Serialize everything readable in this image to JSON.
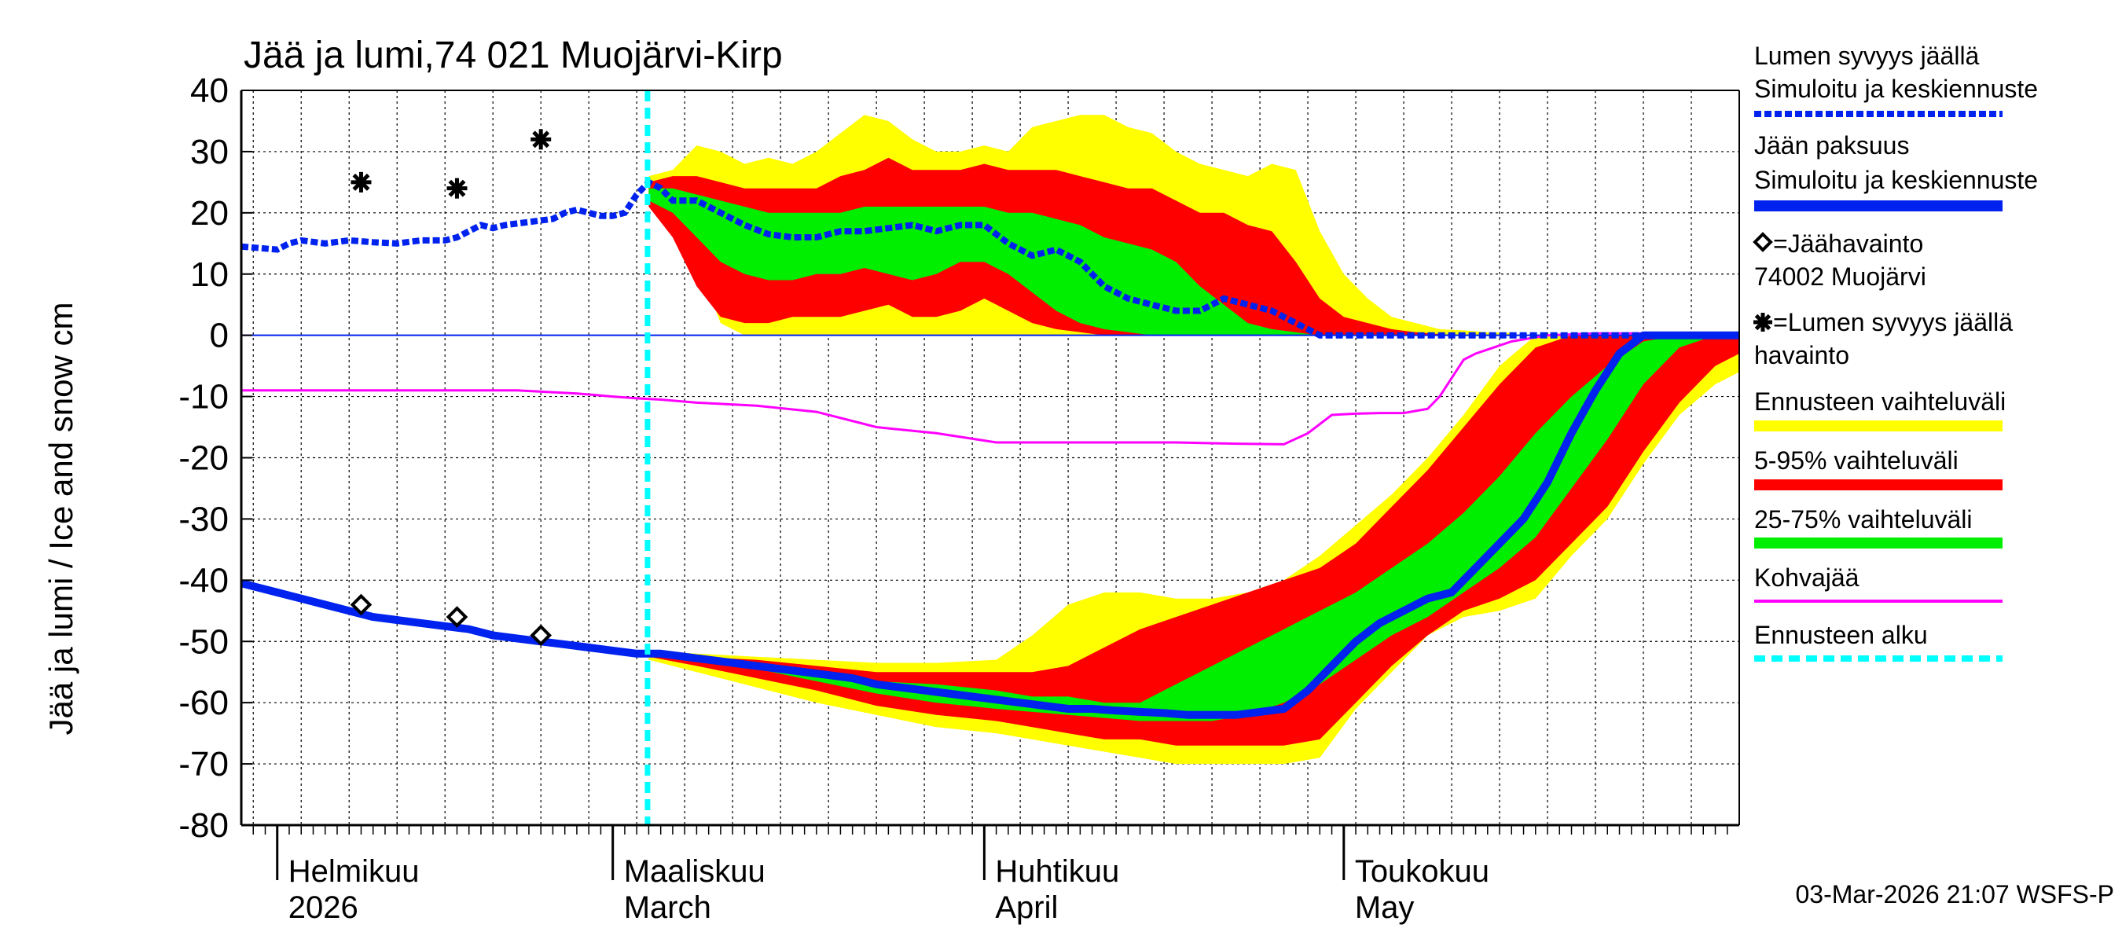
{
  "colors": {
    "yellow": "#ffff00",
    "red": "#ff0000",
    "green": "#00ee00",
    "ice": "#0022ee",
    "snow": "#0022ee",
    "slush": "#ff00ff",
    "forecast_start": "#00ffff",
    "grid": "#000000",
    "background": "#ffffff"
  },
  "chart_data": {
    "type": "area",
    "title": "Jää ja lumi,74 021 Muojärvi-Kirp",
    "ylabel": "Jää ja lumi / Ice and snow    cm",
    "ylim": [
      -80,
      40
    ],
    "yticks": [
      40,
      30,
      20,
      10,
      0,
      -10,
      -20,
      -30,
      -40,
      -50,
      -60,
      -70,
      -80
    ],
    "xlim": [
      -3,
      122
    ],
    "x_unit": "days since 2026-02-01",
    "months": [
      {
        "x": 0,
        "label1": "Helmikuu",
        "label2": "2026"
      },
      {
        "x": 28,
        "label1": "Maaliskuu",
        "label2": "March"
      },
      {
        "x": 59,
        "label1": "Huhtikuu",
        "label2": "April"
      },
      {
        "x": 89,
        "label1": "Toukokuu",
        "label2": "May"
      }
    ],
    "forecast_start_x": 30.9,
    "timestamp": "03-Mar-2026 21:07 WSFS-P",
    "legend": [
      {
        "key": "snow_sim",
        "line1": "Lumen syvyys jäällä",
        "line2": "Simuloitu ja keskiennuste"
      },
      {
        "key": "ice_sim",
        "line1": "Jään paksuus",
        "line2": "Simuloitu ja keskiennuste"
      },
      {
        "key": "ice_obs",
        "line1": "=Jäähavainto",
        "line2": "74002 Muojärvi"
      },
      {
        "key": "snow_obs",
        "line1": "=Lumen syvyys jäällä",
        "line2": "havainto"
      },
      {
        "key": "range_full",
        "line1": "Ennusteen vaihteluväli"
      },
      {
        "key": "range_5_95",
        "line1": "5-95% vaihteluväli"
      },
      {
        "key": "range_25_75",
        "line1": "25-75% vaihteluväli"
      },
      {
        "key": "slush",
        "line1": "Kohvajää"
      },
      {
        "key": "forecast_start",
        "line1": "Ennusteen alku"
      }
    ],
    "snow_bands": {
      "x": [
        31,
        33,
        35,
        37,
        39,
        41,
        43,
        45,
        47,
        49,
        51,
        53,
        55,
        57,
        59,
        61,
        63,
        65,
        67,
        69,
        71,
        73,
        75,
        77,
        79,
        81,
        83,
        85,
        87,
        89,
        91,
        93,
        95,
        97,
        99,
        101,
        103
      ],
      "full_upper": [
        26,
        27,
        31,
        30,
        28,
        29,
        28,
        30,
        33,
        36,
        35,
        32,
        30,
        30,
        31,
        30,
        34,
        35,
        36,
        36,
        34,
        33,
        30,
        28,
        27,
        26,
        28,
        27,
        17,
        10,
        6,
        3,
        2,
        1,
        0.8,
        0.5,
        0.4
      ],
      "full_lower": [
        23,
        20,
        12,
        2,
        0,
        0,
        0,
        0,
        0,
        0,
        0,
        0,
        0,
        0,
        0,
        0,
        0,
        0,
        0,
        0,
        0,
        0,
        0,
        0,
        0,
        0,
        0,
        0,
        0,
        0,
        0,
        0,
        0,
        0,
        0,
        0,
        0
      ],
      "p95": [
        25,
        26,
        26,
        25,
        24,
        24,
        24,
        24,
        26,
        27,
        29,
        27,
        27,
        27,
        28,
        27,
        27,
        27,
        26,
        25,
        24,
        24,
        22,
        20,
        20,
        18,
        17,
        12,
        6,
        3,
        2,
        1,
        0.5,
        0.2,
        0,
        0,
        0
      ],
      "p75": [
        24,
        24,
        23,
        22,
        21,
        20,
        20,
        20,
        20,
        21,
        21,
        21,
        21,
        21,
        21,
        20,
        20,
        19,
        18,
        16,
        15,
        14,
        12,
        8,
        5,
        2,
        1,
        0.5,
        0,
        0,
        0,
        0,
        0,
        0,
        0,
        0,
        0
      ],
      "p25": [
        22,
        20,
        16,
        12,
        10,
        9,
        9,
        10,
        10,
        11,
        10,
        9,
        10,
        12,
        12,
        10,
        7,
        4,
        2,
        1,
        0.5,
        0,
        0,
        0,
        0,
        0,
        0,
        0,
        0,
        0,
        0,
        0,
        0,
        0,
        0,
        0,
        0
      ],
      "p5": [
        21,
        16,
        8,
        3,
        2,
        2,
        3,
        3,
        3,
        4,
        5,
        3,
        3,
        4,
        6,
        4,
        2,
        1,
        0.5,
        0,
        0,
        0,
        0,
        0,
        0,
        0,
        0,
        0,
        0,
        0,
        0,
        0,
        0,
        0,
        0,
        0,
        0
      ]
    },
    "snow_sim": {
      "x": [
        -3,
        0,
        1,
        2,
        4,
        6,
        8,
        10,
        12,
        14,
        15,
        16,
        17,
        18,
        19,
        21,
        23,
        24,
        25,
        27,
        28,
        29,
        30,
        31,
        32,
        33,
        35,
        36,
        37,
        39,
        41,
        43,
        45,
        47,
        49,
        51,
        53,
        55,
        57,
        59,
        61,
        63,
        65,
        67,
        69,
        71,
        73,
        75,
        77,
        79,
        81,
        83,
        85,
        87,
        90,
        95,
        100,
        105,
        110,
        115,
        122
      ],
      "y": [
        14.5,
        14,
        15,
        15.5,
        15,
        15.5,
        15.2,
        15,
        15.5,
        15.5,
        16,
        17,
        18,
        17.5,
        18,
        18.5,
        19,
        20,
        20.5,
        19.5,
        19.5,
        20,
        23,
        25,
        24,
        22,
        22,
        21,
        20,
        18,
        16.5,
        16,
        16,
        17,
        17,
        17.5,
        18,
        17,
        18,
        18,
        15,
        13,
        14,
        12,
        8,
        6,
        5,
        4,
        4,
        6,
        5,
        4,
        2,
        0,
        0,
        0,
        0,
        0,
        0,
        0,
        0
      ]
    },
    "ice_bands": {
      "x": [
        31,
        35,
        40,
        45,
        50,
        55,
        60,
        63,
        66,
        69,
        72,
        75,
        78,
        81,
        84,
        87,
        90,
        93,
        96,
        99,
        102,
        105,
        108,
        111,
        114,
        117,
        120,
        122
      ],
      "full_upper": [
        -51.5,
        -52,
        -52.5,
        -53,
        -53.5,
        -53.5,
        -53,
        -49,
        -44,
        -42,
        -42,
        -43,
        -43,
        -42,
        -40,
        -36,
        -31,
        -26,
        -20,
        -13,
        -5,
        0,
        0,
        0,
        0,
        0,
        0,
        0
      ],
      "p95": [
        -52,
        -52.5,
        -53,
        -54,
        -55,
        -55,
        -55,
        -55,
        -54,
        -51,
        -48,
        -46,
        -44,
        -42,
        -40,
        -38,
        -34,
        -28,
        -22,
        -15,
        -8,
        -2,
        0,
        0,
        0,
        0,
        0,
        0
      ],
      "p75": [
        -52,
        -52.5,
        -53.5,
        -55,
        -56.5,
        -57,
        -58,
        -59,
        -59,
        -60,
        -60,
        -57,
        -54,
        -51,
        -48,
        -45,
        -42,
        -38,
        -34,
        -29,
        -23,
        -16,
        -10,
        -5,
        -1,
        0,
        0,
        0
      ],
      "p25": [
        -52,
        -53,
        -54.5,
        -56.5,
        -58.5,
        -60,
        -61,
        -61.5,
        -62,
        -62.5,
        -63,
        -63,
        -63,
        -62,
        -60,
        -57,
        -53,
        -49,
        -46,
        -42,
        -38,
        -33,
        -25,
        -17,
        -8,
        -2,
        0,
        0
      ],
      "p5": [
        -52.5,
        -54,
        -56,
        -58,
        -60.5,
        -62,
        -63,
        -64,
        -65,
        -66,
        -66,
        -67,
        -67,
        -67,
        -67,
        -66,
        -60,
        -54,
        -49,
        -45,
        -43,
        -40,
        -34,
        -28,
        -19,
        -11,
        -5,
        -3
      ],
      "full_lower": [
        -53,
        -55,
        -57.5,
        -60,
        -62,
        -64,
        -65,
        -66,
        -67,
        -68,
        -69,
        -70,
        -70,
        -70,
        -70,
        -69,
        -61,
        -55,
        -49,
        -46,
        -45,
        -43,
        -36,
        -30,
        -21,
        -13,
        -8,
        -6
      ]
    },
    "ice_sim": {
      "x": [
        -3,
        0,
        2,
        4,
        6,
        8,
        10,
        12,
        14,
        16,
        18,
        20,
        22,
        24,
        26,
        28,
        30,
        32,
        34,
        36,
        38,
        40,
        42,
        44,
        46,
        48,
        50,
        52,
        54,
        56,
        58,
        60,
        62,
        64,
        66,
        68,
        70,
        72,
        74,
        76,
        78,
        80,
        82,
        84,
        86,
        88,
        90,
        92,
        94,
        96,
        98,
        100,
        102,
        104,
        106,
        108,
        110,
        112,
        114,
        122
      ],
      "y": [
        -40.5,
        -42,
        -43,
        -44,
        -45,
        -46,
        -46.5,
        -47,
        -47.5,
        -48,
        -49,
        -49.5,
        -50,
        -50.5,
        -51,
        -51.5,
        -52,
        -52,
        -52.5,
        -53,
        -53.5,
        -54,
        -54.5,
        -55,
        -55.5,
        -56,
        -57,
        -57.5,
        -58,
        -58.5,
        -59,
        -59.5,
        -60,
        -60.5,
        -61,
        -61,
        -61.3,
        -61.5,
        -61.7,
        -62,
        -62,
        -62,
        -61.5,
        -61,
        -58,
        -54,
        -50,
        -47,
        -45,
        -43,
        -42,
        -38,
        -34,
        -30,
        -24,
        -16,
        -9,
        -3,
        0,
        0
      ]
    },
    "slush": {
      "x": [
        -3,
        0,
        5,
        10,
        15,
        20,
        25,
        28,
        30,
        32,
        35,
        40,
        45,
        50,
        55,
        60,
        65,
        70,
        75,
        80,
        84,
        86,
        88,
        90,
        92,
        94,
        96,
        97,
        98,
        99,
        100,
        103,
        106,
        110,
        122
      ],
      "y": [
        -9,
        -9,
        -9,
        -9,
        -9,
        -9,
        -9.5,
        -10,
        -10.3,
        -10.5,
        -11,
        -11.5,
        -12.5,
        -15,
        -16,
        -17.5,
        -17.5,
        -17.5,
        -17.5,
        -17.7,
        -17.8,
        -16,
        -13,
        -12.8,
        -12.7,
        -12.7,
        -12,
        -10,
        -7,
        -4,
        -3,
        -1,
        0,
        0.3,
        0.3
      ]
    },
    "ice_obs": [
      {
        "x": 7,
        "y": -44
      },
      {
        "x": 15,
        "y": -46
      },
      {
        "x": 22,
        "y": -49
      }
    ],
    "snow_obs": [
      {
        "x": 7,
        "y": 25
      },
      {
        "x": 15,
        "y": 24
      },
      {
        "x": 22,
        "y": 32
      }
    ]
  }
}
